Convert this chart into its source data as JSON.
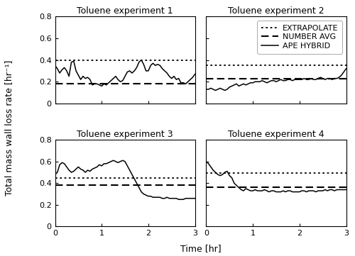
{
  "titles": [
    "Toluene experiment 1",
    "Toluene experiment 2",
    "Toluene experiment 3",
    "Toluene experiment 4"
  ],
  "ylabel": "Total mass wall loss rate [hr⁻¹]",
  "xlabel": "Time [hr]",
  "ylim": [
    0,
    0.8
  ],
  "xlim": [
    0,
    3
  ],
  "yticks": [
    0,
    0.2,
    0.4,
    0.6,
    0.8
  ],
  "xticks": [
    0,
    1,
    2,
    3
  ],
  "legend_labels": [
    "EXTRAPOLATE",
    "NUMBER AVG",
    "APE HYBRID"
  ],
  "extrapolate": [
    0.395,
    0.355,
    0.45,
    0.495
  ],
  "number_avg": [
    0.185,
    0.228,
    0.38,
    0.362
  ],
  "exp1_x": [
    0.0,
    0.05,
    0.1,
    0.15,
    0.2,
    0.25,
    0.3,
    0.35,
    0.4,
    0.45,
    0.5,
    0.55,
    0.6,
    0.65,
    0.7,
    0.75,
    0.8,
    0.85,
    0.9,
    0.95,
    1.0,
    1.05,
    1.1,
    1.15,
    1.2,
    1.25,
    1.3,
    1.35,
    1.4,
    1.45,
    1.5,
    1.55,
    1.6,
    1.65,
    1.7,
    1.75,
    1.8,
    1.85,
    1.9,
    1.95,
    2.0,
    2.05,
    2.1,
    2.15,
    2.2,
    2.25,
    2.3,
    2.35,
    2.4,
    2.45,
    2.5,
    2.55,
    2.6,
    2.65,
    2.7,
    2.75,
    2.8,
    2.85,
    2.9,
    2.95,
    3.0
  ],
  "exp1_y": [
    0.35,
    0.32,
    0.28,
    0.31,
    0.33,
    0.3,
    0.25,
    0.38,
    0.39,
    0.3,
    0.26,
    0.22,
    0.25,
    0.23,
    0.24,
    0.22,
    0.17,
    0.18,
    0.18,
    0.17,
    0.16,
    0.18,
    0.17,
    0.19,
    0.21,
    0.23,
    0.25,
    0.22,
    0.2,
    0.21,
    0.25,
    0.29,
    0.3,
    0.28,
    0.3,
    0.33,
    0.38,
    0.4,
    0.36,
    0.3,
    0.3,
    0.35,
    0.37,
    0.35,
    0.36,
    0.35,
    0.32,
    0.3,
    0.28,
    0.25,
    0.23,
    0.25,
    0.22,
    0.23,
    0.19,
    0.19,
    0.18,
    0.2,
    0.22,
    0.24,
    0.27
  ],
  "exp2_x": [
    0.0,
    0.05,
    0.1,
    0.15,
    0.2,
    0.25,
    0.3,
    0.35,
    0.4,
    0.45,
    0.5,
    0.55,
    0.6,
    0.65,
    0.7,
    0.75,
    0.8,
    0.85,
    0.9,
    0.95,
    1.0,
    1.05,
    1.1,
    1.15,
    1.2,
    1.25,
    1.3,
    1.35,
    1.4,
    1.45,
    1.5,
    1.55,
    1.6,
    1.65,
    1.7,
    1.75,
    1.8,
    1.85,
    1.9,
    1.95,
    2.0,
    2.05,
    2.1,
    2.15,
    2.2,
    2.25,
    2.3,
    2.35,
    2.4,
    2.45,
    2.5,
    2.55,
    2.6,
    2.65,
    2.7,
    2.75,
    2.8,
    2.85,
    2.9,
    2.95,
    3.0
  ],
  "exp2_y": [
    0.13,
    0.13,
    0.14,
    0.13,
    0.12,
    0.13,
    0.14,
    0.13,
    0.12,
    0.13,
    0.15,
    0.16,
    0.17,
    0.18,
    0.16,
    0.17,
    0.18,
    0.17,
    0.18,
    0.19,
    0.19,
    0.2,
    0.2,
    0.2,
    0.21,
    0.2,
    0.19,
    0.2,
    0.21,
    0.21,
    0.2,
    0.21,
    0.22,
    0.21,
    0.21,
    0.22,
    0.22,
    0.21,
    0.22,
    0.22,
    0.22,
    0.22,
    0.23,
    0.22,
    0.22,
    0.23,
    0.22,
    0.22,
    0.23,
    0.24,
    0.23,
    0.22,
    0.23,
    0.23,
    0.22,
    0.23,
    0.23,
    0.24,
    0.26,
    0.29,
    0.32
  ],
  "exp3_x": [
    0.0,
    0.05,
    0.1,
    0.15,
    0.2,
    0.25,
    0.3,
    0.35,
    0.4,
    0.45,
    0.5,
    0.55,
    0.6,
    0.65,
    0.7,
    0.75,
    0.8,
    0.85,
    0.9,
    0.95,
    1.0,
    1.05,
    1.1,
    1.15,
    1.2,
    1.25,
    1.3,
    1.35,
    1.4,
    1.45,
    1.5,
    1.55,
    1.6,
    1.65,
    1.7,
    1.75,
    1.8,
    1.85,
    1.9,
    1.95,
    2.0,
    2.05,
    2.1,
    2.15,
    2.2,
    2.25,
    2.3,
    2.35,
    2.4,
    2.45,
    2.5,
    2.55,
    2.6,
    2.65,
    2.7,
    2.75,
    2.8,
    2.85,
    2.9,
    2.95,
    3.0
  ],
  "exp3_y": [
    0.48,
    0.5,
    0.57,
    0.59,
    0.58,
    0.55,
    0.52,
    0.5,
    0.51,
    0.53,
    0.55,
    0.53,
    0.52,
    0.5,
    0.52,
    0.51,
    0.53,
    0.54,
    0.55,
    0.57,
    0.56,
    0.58,
    0.58,
    0.59,
    0.6,
    0.61,
    0.6,
    0.59,
    0.6,
    0.61,
    0.6,
    0.56,
    0.52,
    0.48,
    0.44,
    0.4,
    0.36,
    0.32,
    0.3,
    0.29,
    0.28,
    0.28,
    0.27,
    0.27,
    0.27,
    0.27,
    0.26,
    0.26,
    0.27,
    0.26,
    0.26,
    0.26,
    0.26,
    0.25,
    0.25,
    0.25,
    0.26,
    0.26,
    0.26,
    0.26,
    0.26
  ],
  "exp4_x": [
    0.0,
    0.05,
    0.1,
    0.15,
    0.2,
    0.25,
    0.3,
    0.35,
    0.4,
    0.45,
    0.5,
    0.55,
    0.6,
    0.65,
    0.7,
    0.75,
    0.8,
    0.85,
    0.9,
    0.95,
    1.0,
    1.05,
    1.1,
    1.15,
    1.2,
    1.25,
    1.3,
    1.35,
    1.4,
    1.45,
    1.5,
    1.55,
    1.6,
    1.65,
    1.7,
    1.75,
    1.8,
    1.85,
    1.9,
    1.95,
    2.0,
    2.05,
    2.1,
    2.15,
    2.2,
    2.25,
    2.3,
    2.35,
    2.4,
    2.45,
    2.5,
    2.55,
    2.6,
    2.65,
    2.7,
    2.75,
    2.8,
    2.85,
    2.9,
    2.95,
    3.0
  ],
  "exp4_y": [
    0.6,
    0.58,
    0.55,
    0.52,
    0.5,
    0.48,
    0.47,
    0.48,
    0.5,
    0.51,
    0.47,
    0.45,
    0.4,
    0.38,
    0.36,
    0.34,
    0.33,
    0.35,
    0.34,
    0.33,
    0.33,
    0.34,
    0.33,
    0.33,
    0.33,
    0.34,
    0.33,
    0.32,
    0.33,
    0.33,
    0.32,
    0.32,
    0.32,
    0.33,
    0.32,
    0.33,
    0.33,
    0.32,
    0.32,
    0.32,
    0.32,
    0.33,
    0.33,
    0.32,
    0.33,
    0.33,
    0.33,
    0.32,
    0.33,
    0.33,
    0.33,
    0.34,
    0.33,
    0.34,
    0.34,
    0.33,
    0.34,
    0.34,
    0.34,
    0.34,
    0.34
  ],
  "line_color": "#000000",
  "background_color": "#ffffff",
  "title_fontsize": 9,
  "label_fontsize": 9,
  "tick_fontsize": 8,
  "legend_fontsize": 8
}
